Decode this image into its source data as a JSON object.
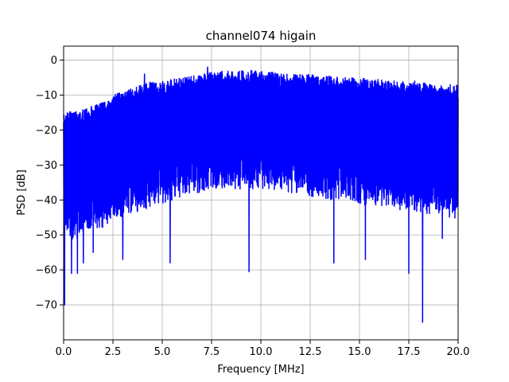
{
  "chart_data": {
    "type": "line",
    "title": "channel074 higain",
    "xlabel": "Frequency [MHz]",
    "ylabel": "PSD [dB]",
    "xlim": [
      0,
      20
    ],
    "ylim": [
      -80,
      4
    ],
    "xticks": [
      0.0,
      2.5,
      5.0,
      7.5,
      10.0,
      12.5,
      15.0,
      17.5,
      20.0
    ],
    "xtick_labels": [
      "0.0",
      "2.5",
      "5.0",
      "7.5",
      "10.0",
      "12.5",
      "15.0",
      "17.5",
      "20.0"
    ],
    "yticks": [
      0,
      -10,
      -20,
      -30,
      -40,
      -50,
      -60,
      -70
    ],
    "ytick_labels": [
      "0",
      "−10",
      "−20",
      "−30",
      "−40",
      "−50",
      "−60",
      "−70"
    ],
    "grid": true,
    "series": [
      {
        "color": "#0000ff",
        "envelope_x": [
          0.0,
          0.5,
          1.0,
          1.5,
          2.0,
          2.5,
          3.0,
          3.5,
          4.0,
          4.5,
          5.0,
          5.5,
          6.0,
          6.5,
          7.0,
          7.5,
          8.0,
          8.5,
          9.0,
          9.5,
          10.0,
          10.5,
          11.0,
          11.5,
          12.0,
          12.5,
          13.0,
          13.5,
          14.0,
          14.5,
          15.0,
          15.5,
          16.0,
          16.5,
          17.0,
          17.5,
          18.0,
          18.5,
          19.0,
          19.5,
          20.0
        ],
        "envelope_max": [
          -14,
          -15,
          -14,
          -13,
          -12,
          -10,
          -9,
          -8,
          -7,
          -6,
          -6,
          -5.5,
          -5,
          -4.5,
          -4,
          -3.5,
          -3,
          -3,
          -3,
          -3,
          -3,
          -3.5,
          -3.5,
          -4,
          -4,
          -4,
          -4.5,
          -4.5,
          -5,
          -5,
          -5,
          -5.5,
          -5.5,
          -6,
          -6,
          -6,
          -6.5,
          -6.5,
          -7,
          -7,
          -7
        ],
        "envelope_min": [
          -48,
          -52,
          -50,
          -48,
          -48,
          -46,
          -45,
          -44,
          -43,
          -42,
          -41,
          -40,
          -39,
          -38,
          -38,
          -37,
          -37,
          -37,
          -37,
          -37,
          -37,
          -37,
          -38,
          -38,
          -38,
          -39,
          -39,
          -40,
          -40,
          -41,
          -41,
          -42,
          -42,
          -42,
          -43,
          -43,
          -44,
          -44,
          -44,
          -45,
          -46
        ],
        "dips": [
          {
            "x": 0.05,
            "y": -70
          },
          {
            "x": 0.4,
            "y": -61
          },
          {
            "x": 0.7,
            "y": -61
          },
          {
            "x": 1.0,
            "y": -58
          },
          {
            "x": 1.5,
            "y": -55
          },
          {
            "x": 3.0,
            "y": -57
          },
          {
            "x": 5.4,
            "y": -58
          },
          {
            "x": 9.4,
            "y": -60.5
          },
          {
            "x": 13.7,
            "y": -58
          },
          {
            "x": 15.3,
            "y": -57
          },
          {
            "x": 17.5,
            "y": -61
          },
          {
            "x": 18.2,
            "y": -75
          },
          {
            "x": 19.2,
            "y": -51
          }
        ],
        "peaks": [
          {
            "x": 4.1,
            "y": -4
          },
          {
            "x": 7.3,
            "y": -2
          },
          {
            "x": 9.5,
            "y": -3
          },
          {
            "x": 10.6,
            "y": -3.5
          },
          {
            "x": 17.8,
            "y": -6
          }
        ]
      }
    ]
  }
}
